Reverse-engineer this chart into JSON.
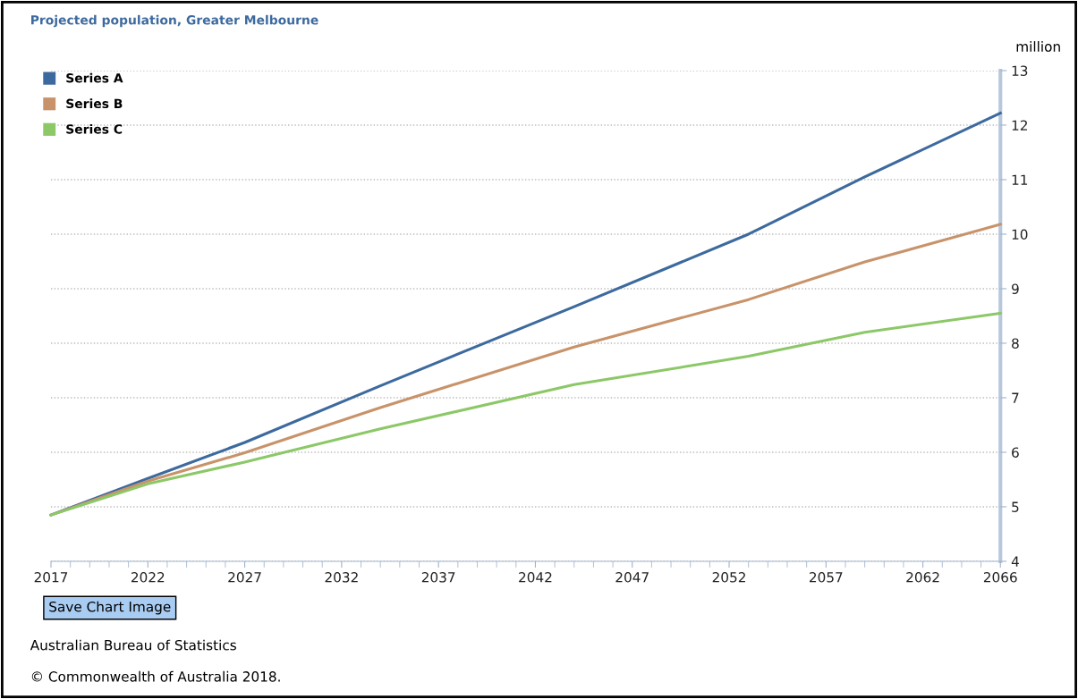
{
  "chart_data": {
    "type": "line",
    "title": "Projected population, Greater Melbourne",
    "ylabel": "million",
    "x": [
      2017,
      2022,
      2027,
      2034,
      2044,
      2053,
      2059,
      2066
    ],
    "series": [
      {
        "name": "Series A",
        "color": "#3d6a9e",
        "values": [
          4.85,
          5.52,
          6.18,
          7.22,
          8.67,
          10.0,
          11.05,
          12.22
        ]
      },
      {
        "name": "Series B",
        "color": "#c8936a",
        "values": [
          4.85,
          5.47,
          5.99,
          6.82,
          7.93,
          8.8,
          9.49,
          10.18
        ]
      },
      {
        "name": "Series C",
        "color": "#8cc867",
        "values": [
          4.85,
          5.42,
          5.82,
          6.43,
          7.24,
          7.76,
          8.2,
          8.55
        ]
      }
    ],
    "xlim": [
      2017,
      2066
    ],
    "xticks": [
      2017,
      2022,
      2027,
      2032,
      2037,
      2042,
      2047,
      2052,
      2057,
      2062,
      2066
    ],
    "ylim": [
      4,
      13
    ],
    "yticks": [
      4,
      5,
      6,
      7,
      8,
      9,
      10,
      11,
      12,
      13
    ],
    "grid": "y",
    "legend": "top left",
    "marker": "none",
    "line_style": "solid",
    "annotations": [
      "Save Chart Image",
      "Australian Bureau of Statistics",
      "© Commonwealth of Australia 2018."
    ]
  }
}
